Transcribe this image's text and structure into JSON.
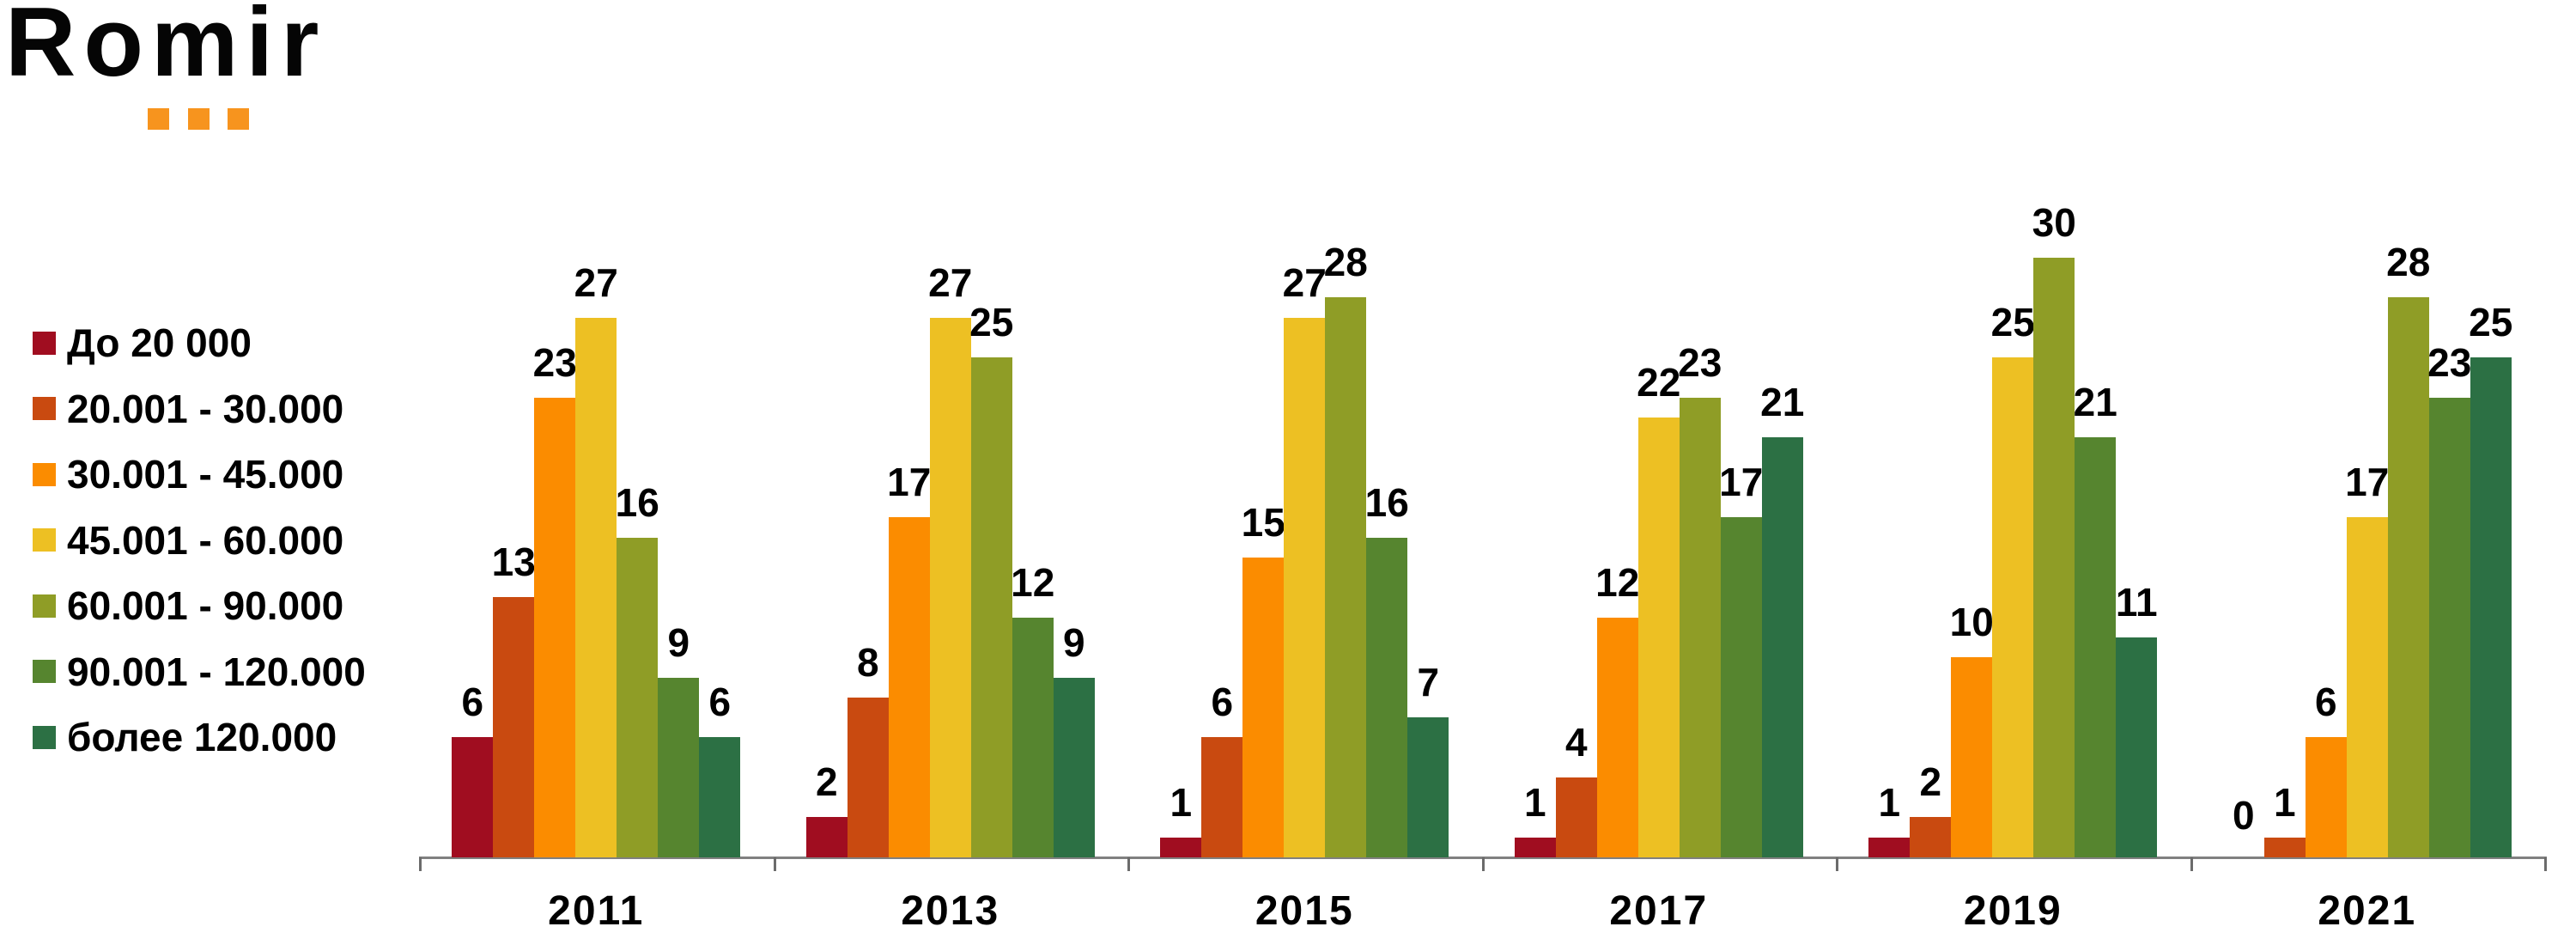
{
  "logo": {
    "text": "Romir",
    "accent_color": "#F7941E",
    "dots": 3
  },
  "chart_data": {
    "type": "bar",
    "title": "",
    "categories": [
      "2011",
      "2013",
      "2015",
      "2017",
      "2019",
      "2021"
    ],
    "series": [
      {
        "name": "До 20 000",
        "color": "#A00D20",
        "values": [
          6,
          2,
          1,
          1,
          1,
          0
        ]
      },
      {
        "name": "20.001 - 30.000",
        "color": "#C94A10",
        "values": [
          13,
          8,
          6,
          4,
          2,
          1
        ]
      },
      {
        "name": "30.001 - 45.000",
        "color": "#FB8C00",
        "values": [
          23,
          17,
          15,
          12,
          10,
          6
        ]
      },
      {
        "name": "45.001 - 60.000",
        "color": "#EDC023",
        "values": [
          27,
          27,
          27,
          22,
          25,
          17
        ]
      },
      {
        "name": "60.001 - 90.000",
        "color": "#8F9D26",
        "values": [
          16,
          25,
          28,
          23,
          30,
          28
        ]
      },
      {
        "name": "90.001 - 120.000",
        "color": "#56852F",
        "values": [
          9,
          12,
          16,
          17,
          21,
          23
        ]
      },
      {
        "name": "более 120.000",
        "color": "#2C7044",
        "values": [
          6,
          9,
          7,
          21,
          11,
          25
        ]
      }
    ],
    "ylim": [
      0,
      30
    ],
    "grid": false,
    "value_labels": true,
    "legend_position": "left",
    "axis_color": "#808080"
  }
}
